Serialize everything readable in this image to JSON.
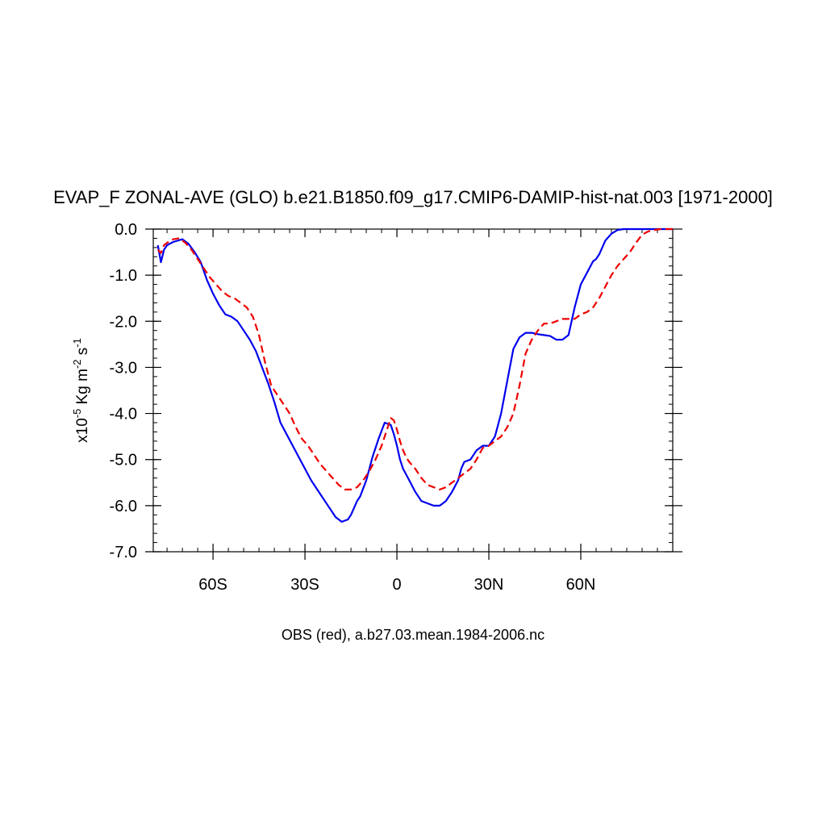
{
  "chart_data": {
    "type": "line",
    "title": "EVAP_F ZONAL-AVE (GLO) b.e21.B1850.f09_g17.CMIP6-DAMIP-hist-nat.003 [1971-2000]",
    "ylabel": {
      "prefix": "x10",
      "exp1": "-5",
      "mid": " Kg m",
      "exp2": "-2",
      "mid2": " s",
      "exp3": "-1"
    },
    "footer": "OBS (red), a.b27.03.mean.1984-2006.nc",
    "xlim": [
      -79.5,
      90
    ],
    "ylim": [
      -7.0,
      0.0
    ],
    "xticks": [
      {
        "value": -60,
        "label": "60S"
      },
      {
        "value": -30,
        "label": "30S"
      },
      {
        "value": 0,
        "label": "0"
      },
      {
        "value": 30,
        "label": "30N"
      },
      {
        "value": 60,
        "label": "60N"
      }
    ],
    "yticks": [
      {
        "value": 0.0,
        "label": "0.0"
      },
      {
        "value": -1.0,
        "label": "-1.0"
      },
      {
        "value": -2.0,
        "label": "-2.0"
      },
      {
        "value": -3.0,
        "label": "-3.0"
      },
      {
        "value": -4.0,
        "label": "-4.0"
      },
      {
        "value": -5.0,
        "label": "-5.0"
      },
      {
        "value": -6.0,
        "label": "-6.0"
      },
      {
        "value": -7.0,
        "label": "-7.0"
      }
    ],
    "grid": false,
    "series": [
      {
        "color": "#0000ee",
        "dash": "solid",
        "x": [
          -78,
          -77,
          -76,
          -75,
          -73,
          -70,
          -68,
          -66,
          -64,
          -62,
          -60,
          -58,
          -56,
          -54,
          -52,
          -50,
          -48,
          -46,
          -44,
          -42,
          -40,
          -38,
          -36,
          -34,
          -32,
          -30,
          -28,
          -26,
          -24,
          -22,
          -20,
          -18,
          -16,
          -15,
          -14,
          -13,
          -12,
          -10,
          -8,
          -6,
          -4,
          -2,
          -1,
          0,
          1,
          2,
          4,
          6,
          8,
          10,
          12,
          14,
          16,
          18,
          20,
          21,
          22,
          24,
          26,
          28,
          30,
          32,
          34,
          36,
          38,
          40,
          42,
          44,
          46,
          48,
          50,
          52,
          54,
          56,
          58,
          60,
          62,
          64,
          65,
          66,
          67,
          68,
          70,
          72,
          74,
          76,
          78,
          80,
          82,
          84,
          86,
          88,
          90
        ],
        "y": [
          -0.35,
          -0.72,
          -0.45,
          -0.35,
          -0.28,
          -0.22,
          -0.32,
          -0.5,
          -0.72,
          -1.1,
          -1.4,
          -1.65,
          -1.85,
          -1.9,
          -2.0,
          -2.2,
          -2.4,
          -2.65,
          -3.0,
          -3.35,
          -3.75,
          -4.2,
          -4.45,
          -4.7,
          -4.95,
          -5.2,
          -5.45,
          -5.65,
          -5.85,
          -6.05,
          -6.25,
          -6.35,
          -6.3,
          -6.2,
          -6.05,
          -5.9,
          -5.8,
          -5.45,
          -4.95,
          -4.55,
          -4.2,
          -4.25,
          -4.45,
          -4.7,
          -5.0,
          -5.2,
          -5.45,
          -5.7,
          -5.9,
          -5.95,
          -6.0,
          -6.0,
          -5.9,
          -5.7,
          -5.45,
          -5.2,
          -5.05,
          -5.0,
          -4.8,
          -4.7,
          -4.7,
          -4.5,
          -4.0,
          -3.3,
          -2.6,
          -2.35,
          -2.25,
          -2.25,
          -2.28,
          -2.3,
          -2.32,
          -2.4,
          -2.4,
          -2.3,
          -1.7,
          -1.2,
          -0.95,
          -0.7,
          -0.65,
          -0.55,
          -0.4,
          -0.25,
          -0.1,
          -0.02,
          0.0,
          0.0,
          0.0,
          0.0,
          0.0,
          0.0,
          0.0,
          0.0,
          0.0
        ]
      },
      {
        "color": "#ee0000",
        "dash": "dashed",
        "x": [
          -78,
          -77,
          -76,
          -75,
          -73,
          -71,
          -69,
          -67,
          -65,
          -63,
          -61,
          -59,
          -57,
          -55,
          -53,
          -51,
          -49,
          -47,
          -45,
          -43,
          -41,
          -39,
          -37,
          -35,
          -33,
          -31,
          -29,
          -27,
          -25,
          -23,
          -21,
          -19,
          -17,
          -15,
          -13,
          -11,
          -9,
          -7,
          -5,
          -4,
          -3,
          -2,
          -1,
          0,
          1,
          2,
          3,
          4,
          6,
          8,
          10,
          12,
          14,
          16,
          18,
          20,
          22,
          24,
          26,
          28,
          30,
          32,
          34,
          36,
          38,
          40,
          42,
          44,
          46,
          48,
          50,
          52,
          54,
          56,
          58,
          60,
          62,
          64,
          66,
          68,
          70,
          72,
          74,
          76,
          78,
          80,
          82,
          84,
          86,
          88,
          90
        ],
        "y": [
          -0.45,
          -0.52,
          -0.35,
          -0.3,
          -0.22,
          -0.2,
          -0.3,
          -0.45,
          -0.65,
          -0.85,
          -1.05,
          -1.2,
          -1.35,
          -1.45,
          -1.5,
          -1.6,
          -1.7,
          -1.9,
          -2.3,
          -2.9,
          -3.4,
          -3.6,
          -3.8,
          -4.0,
          -4.3,
          -4.55,
          -4.7,
          -4.9,
          -5.1,
          -5.25,
          -5.4,
          -5.55,
          -5.65,
          -5.65,
          -5.6,
          -5.45,
          -5.25,
          -5.0,
          -4.7,
          -4.5,
          -4.3,
          -4.1,
          -4.15,
          -4.35,
          -4.6,
          -4.8,
          -4.95,
          -5.05,
          -5.2,
          -5.4,
          -5.55,
          -5.6,
          -5.65,
          -5.6,
          -5.5,
          -5.4,
          -5.3,
          -5.2,
          -5.0,
          -4.75,
          -4.7,
          -4.6,
          -4.5,
          -4.3,
          -4.0,
          -3.4,
          -2.7,
          -2.4,
          -2.2,
          -2.05,
          -2.05,
          -2.0,
          -1.95,
          -1.95,
          -1.95,
          -1.85,
          -1.8,
          -1.7,
          -1.5,
          -1.25,
          -1.0,
          -0.8,
          -0.65,
          -0.5,
          -0.3,
          -0.12,
          -0.05,
          -0.02,
          0.0,
          0.0,
          0.0
        ]
      }
    ]
  }
}
